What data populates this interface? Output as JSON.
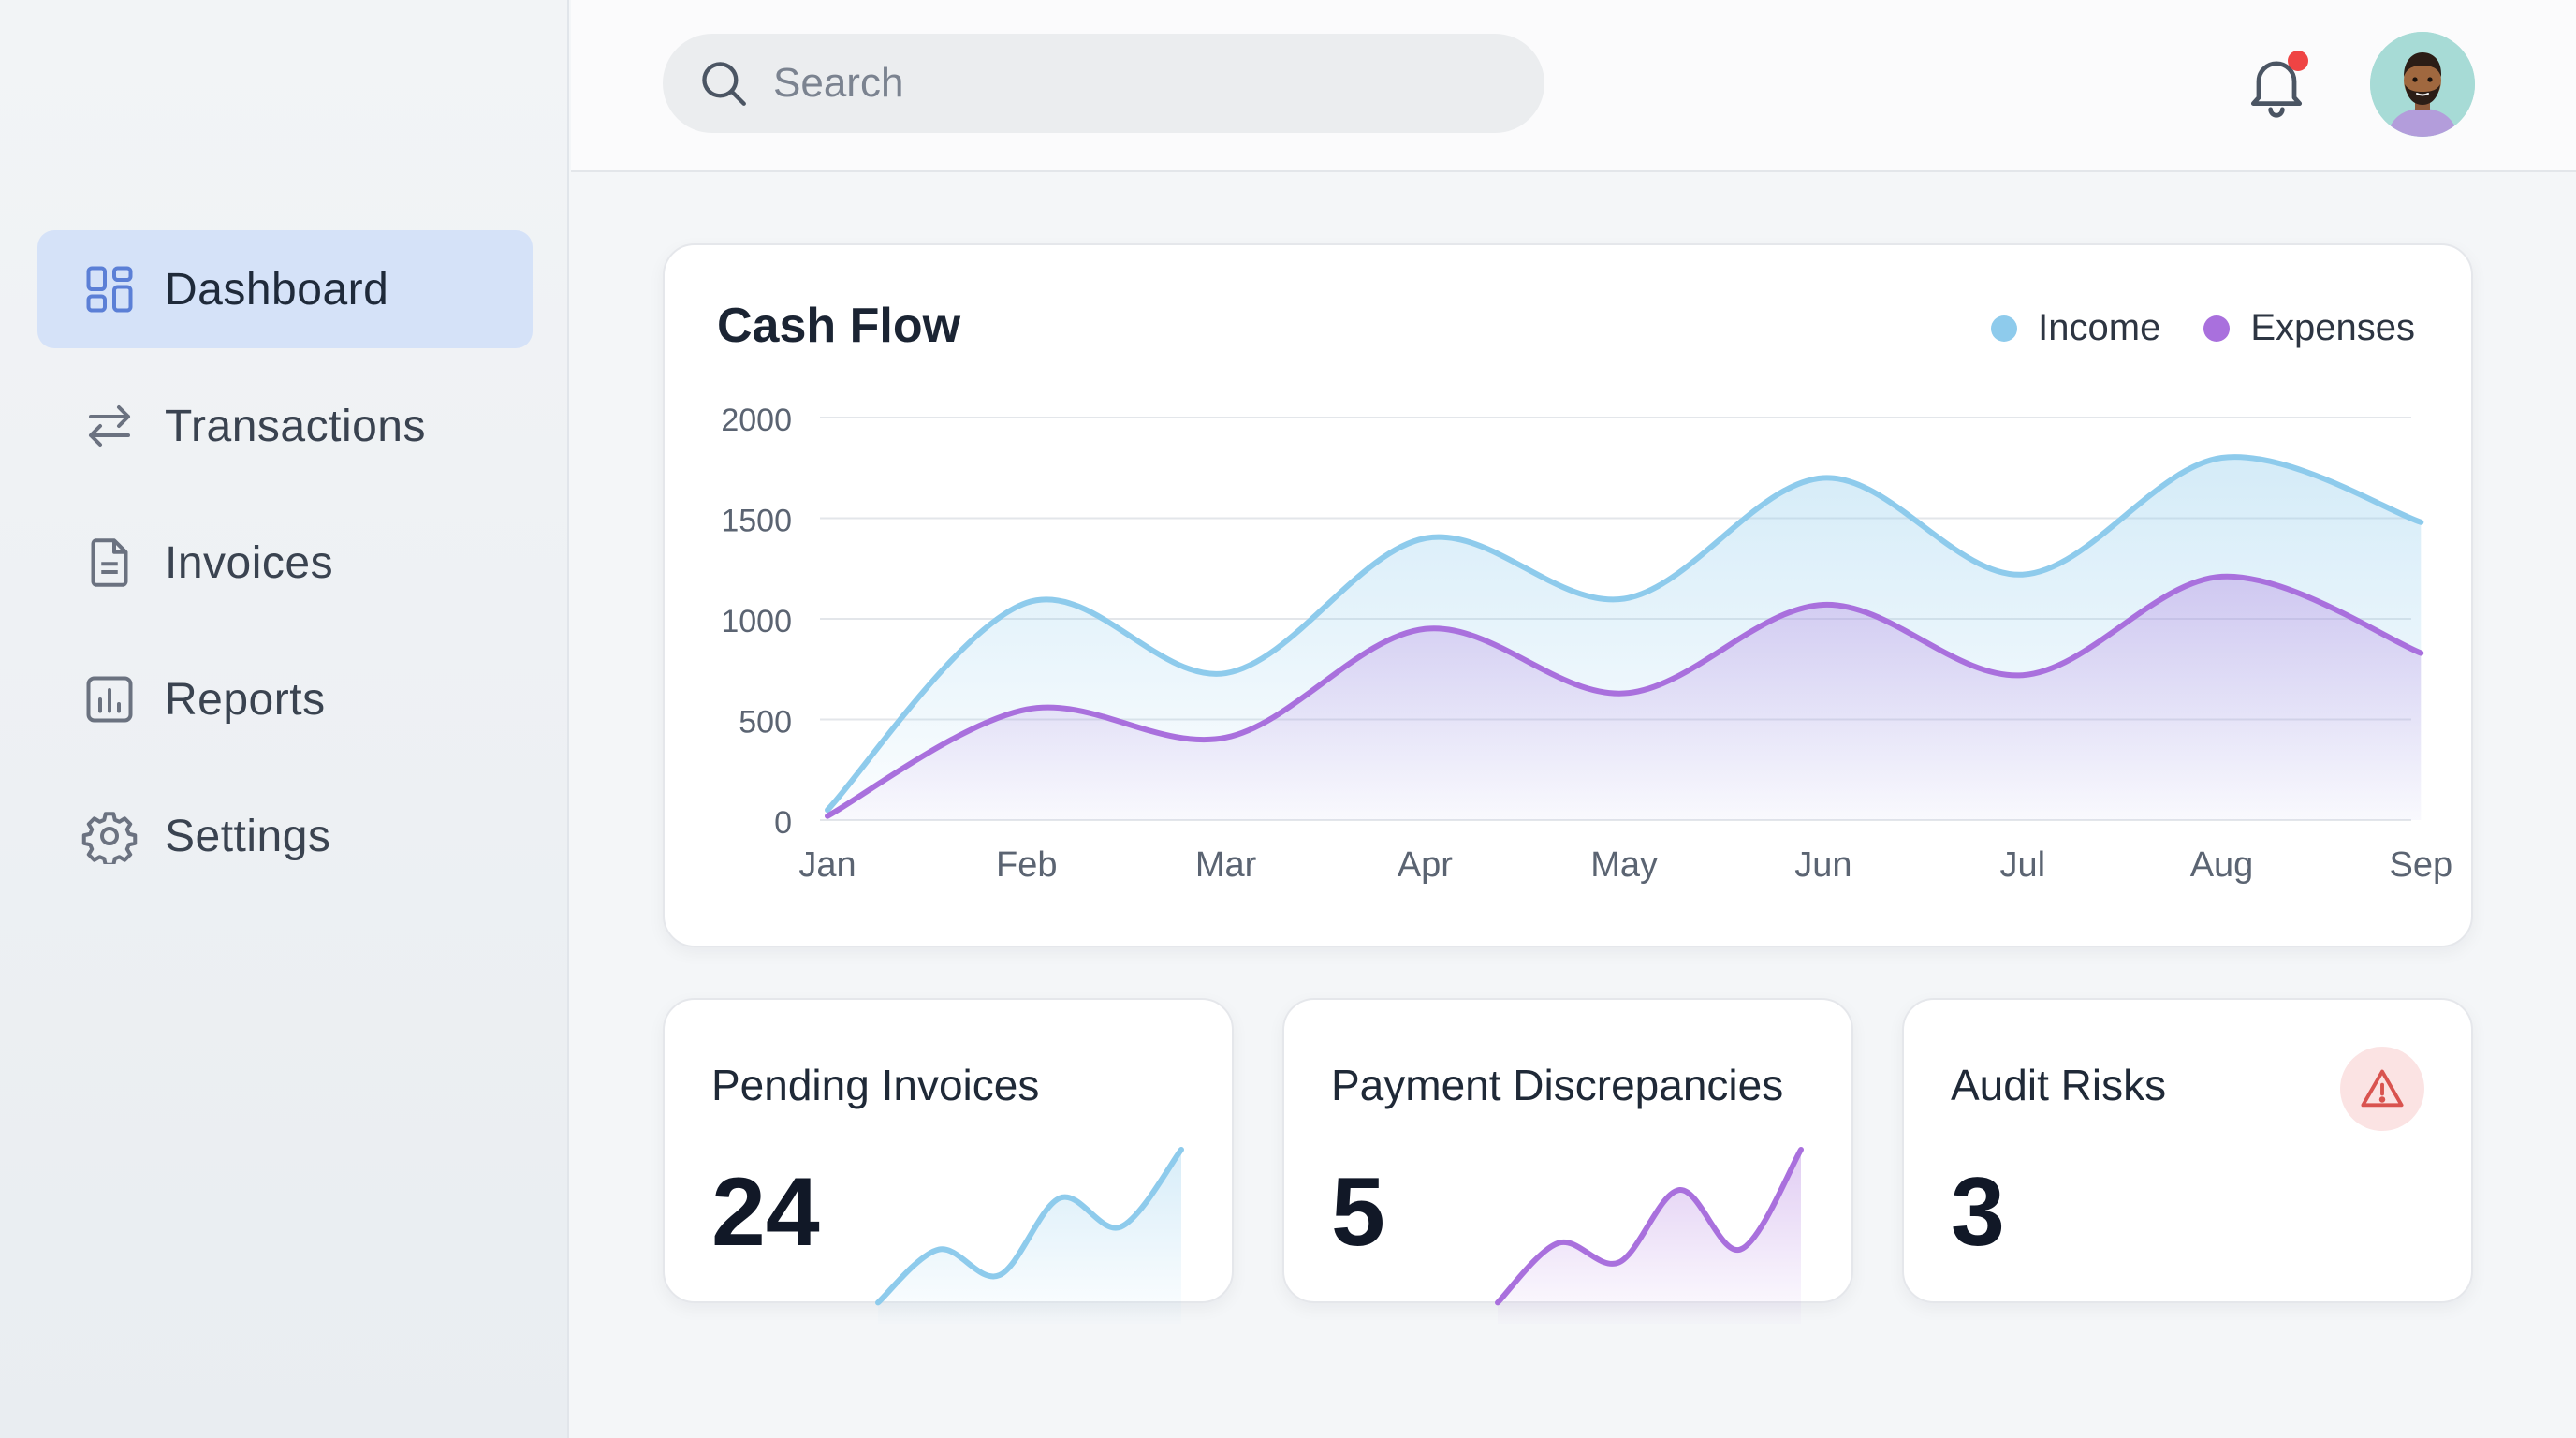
{
  "sidebar": {
    "items": [
      {
        "label": "Dashboard",
        "icon": "dashboard-icon",
        "active": true
      },
      {
        "label": "Transactions",
        "icon": "arrows-swap-icon"
      },
      {
        "label": "Invoices",
        "icon": "document-icon"
      },
      {
        "label": "Reports",
        "icon": "bar-chart-icon"
      },
      {
        "label": "Settings",
        "icon": "gear-icon"
      }
    ]
  },
  "header": {
    "search_placeholder": "Search",
    "notification_icon": "bell-icon",
    "has_notification": true
  },
  "colors": {
    "income": "#8ecbec",
    "expenses": "#a970dd",
    "active_nav": "#d5e2f8",
    "alert": "#ef4444"
  },
  "chart_data": {
    "type": "area",
    "title": "Cash Flow",
    "categories": [
      "Jan",
      "Feb",
      "Mar",
      "Apr",
      "May",
      "Jun",
      "Jul",
      "Aug",
      "Sep"
    ],
    "series": [
      {
        "name": "Income",
        "values": [
          50,
          1080,
          730,
          1400,
          1100,
          1700,
          1220,
          1800,
          1480
        ]
      },
      {
        "name": "Expenses",
        "values": [
          20,
          550,
          410,
          950,
          630,
          1070,
          720,
          1210,
          830
        ]
      }
    ],
    "yticks": [
      0,
      500,
      1000,
      1500,
      2000
    ],
    "ylim": [
      0,
      2000
    ],
    "legend": "top-right",
    "grid": true
  },
  "stats": [
    {
      "label": "Pending Invoices",
      "value": "24",
      "trend": [
        0.05,
        0.38,
        0.22,
        0.7,
        0.52,
        1.0
      ],
      "color": "#8ecbec"
    },
    {
      "label": "Payment Discrepancies",
      "value": "5",
      "trend": [
        0.05,
        0.42,
        0.3,
        0.75,
        0.38,
        1.0
      ],
      "color": "#a970dd"
    },
    {
      "label": "Audit Risks",
      "value": "3",
      "icon": "warning-icon"
    }
  ]
}
